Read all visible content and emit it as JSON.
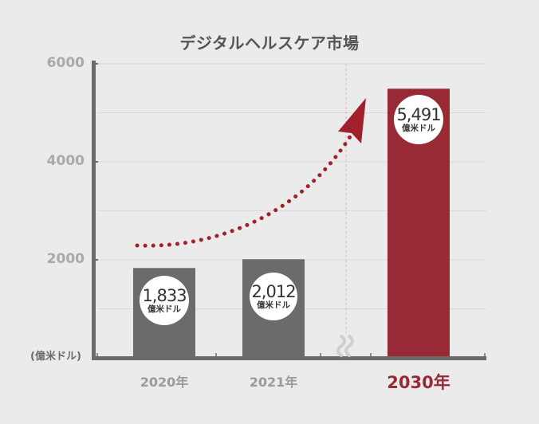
{
  "chart_data": {
    "type": "bar",
    "title": "デジタルヘルスケア市場",
    "unit_label": "(億米ドル)",
    "categories": [
      "2020年",
      "2021年",
      "2030年"
    ],
    "values": [
      1833,
      2012,
      5491
    ],
    "value_labels": [
      "1,833",
      "2,012",
      "5,491"
    ],
    "value_unit": "億米ドル",
    "yticks": [
      "6000",
      "4000",
      "2000"
    ],
    "ylim": [
      0,
      6000
    ],
    "highlight_category": "2030年",
    "axis_break_between": [
      "2021年",
      "2030年"
    ],
    "grid": true,
    "legend": "none",
    "colors": {
      "bar": "#6b6b6b",
      "highlight_bar": "#982a35",
      "arrow": "#a0202b",
      "axis": "#6b6b6b",
      "tick_text": "#a9a9a9",
      "highlight_text": "#982a35",
      "background": "#ebebeb"
    }
  }
}
